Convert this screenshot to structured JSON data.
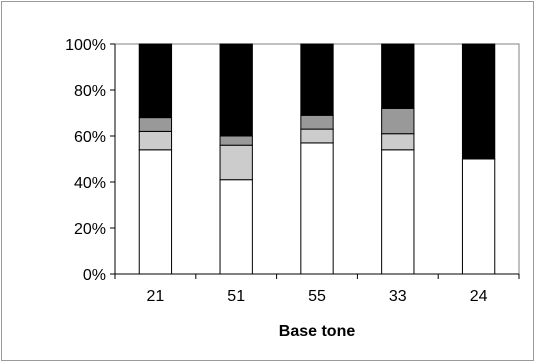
{
  "chart_data": {
    "type": "bar",
    "stacked": true,
    "percent_stacked": true,
    "categories": [
      "21",
      "51",
      "55",
      "33",
      "24"
    ],
    "series": [
      {
        "values": [
          54,
          41,
          57,
          54,
          50
        ],
        "color": "#ffffff"
      },
      {
        "values": [
          8,
          15,
          6,
          7,
          0
        ],
        "color": "#cccccc"
      },
      {
        "values": [
          6,
          4,
          6,
          11,
          0
        ],
        "color": "#999999"
      },
      {
        "values": [
          32,
          40,
          31,
          28,
          50
        ],
        "color": "#000000"
      }
    ],
    "title": "",
    "xlabel": "Base tone",
    "ylabel": "",
    "ylim": [
      0,
      100
    ],
    "yticks": [
      "0%",
      "20%",
      "40%",
      "60%",
      "80%",
      "100%"
    ],
    "grid": false,
    "legend": "none"
  }
}
